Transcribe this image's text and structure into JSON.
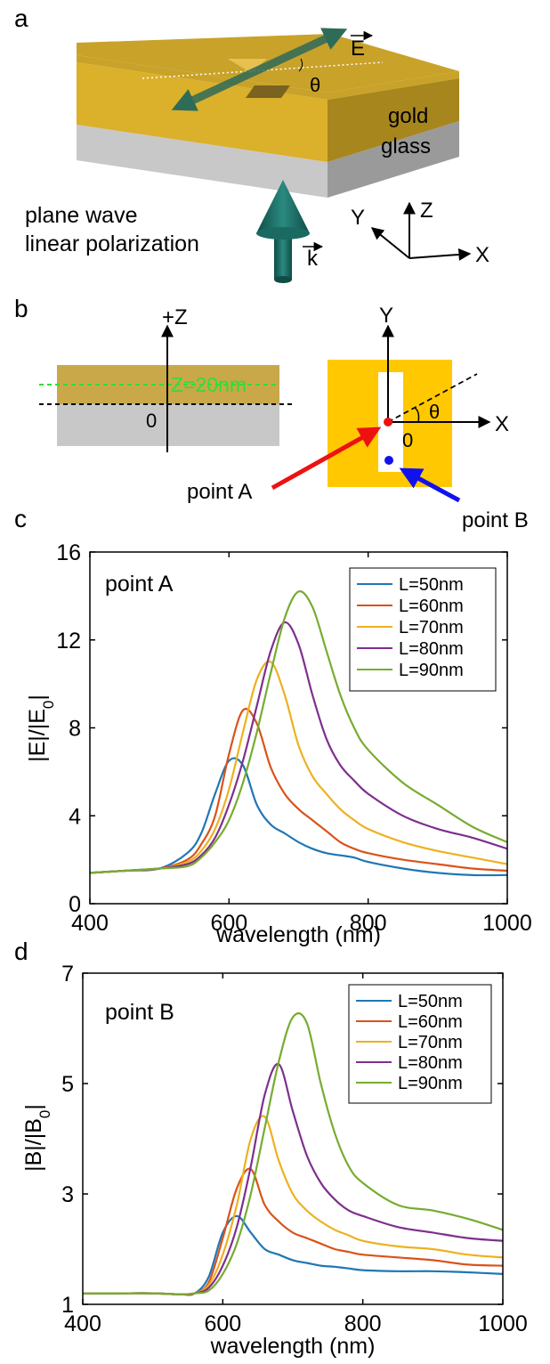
{
  "panels": {
    "a": {
      "letter": "a",
      "labels": {
        "gold": "gold",
        "glass": "glass",
        "source_line1": "plane wave",
        "source_line2": "linear polarization",
        "e_field": "E",
        "k_vector": "k",
        "theta": "θ",
        "axis_x": "X",
        "axis_y": "Y",
        "axis_z": "Z"
      },
      "colors": {
        "gold": "#d8ae26",
        "glass": "#c8c8c8",
        "arrow": "#2e6b58",
        "cone": "#1f6d66"
      }
    },
    "b": {
      "letter": "b",
      "labels": {
        "plus_z": "+Z",
        "z_plane": "Z=20nm",
        "origin_left": "0",
        "axis_y": "Y",
        "axis_x": "X",
        "theta": "θ",
        "origin_right": "0",
        "point_a": "point A",
        "point_b": "point B"
      },
      "colors": {
        "gold_side": "#c9a84a",
        "glass_side": "#c8c8c8",
        "gold_top": "#ffc800",
        "z_line": "#33dd33",
        "point_a": "#ee1111",
        "point_b": "#1111ee"
      }
    }
  },
  "chart_data": [
    {
      "panel": "c",
      "type": "line",
      "annotation": "point A",
      "xlabel": "wavelength (nm)",
      "ylabel": "|E|/|E0|",
      "xlim": [
        400,
        1000
      ],
      "ylim": [
        0,
        16
      ],
      "xticks": [
        400,
        600,
        800,
        1000
      ],
      "yticks": [
        0,
        4,
        8,
        12,
        16
      ],
      "legend_position": "top-right",
      "grid": false,
      "x": [
        400,
        450,
        500,
        540,
        560,
        580,
        600,
        620,
        640,
        660,
        680,
        700,
        720,
        740,
        760,
        780,
        800,
        850,
        900,
        950,
        1000
      ],
      "series": [
        {
          "name": "L=50nm",
          "color": "#1f77b4",
          "values": [
            1.4,
            1.5,
            1.6,
            2.3,
            3.2,
            5.0,
            6.5,
            6.3,
            4.5,
            3.6,
            3.2,
            2.8,
            2.5,
            2.3,
            2.2,
            2.1,
            1.9,
            1.6,
            1.4,
            1.3,
            1.3
          ]
        },
        {
          "name": "L=60nm",
          "color": "#d95319",
          "values": [
            1.4,
            1.5,
            1.6,
            2.0,
            2.7,
            4.0,
            6.8,
            8.8,
            8.2,
            6.2,
            5.0,
            4.3,
            3.8,
            3.3,
            2.8,
            2.5,
            2.3,
            2.0,
            1.8,
            1.6,
            1.5
          ]
        },
        {
          "name": "L=70nm",
          "color": "#edb120",
          "values": [
            1.4,
            1.5,
            1.6,
            1.9,
            2.4,
            3.4,
            5.2,
            7.8,
            10.2,
            11.0,
            9.5,
            7.2,
            5.8,
            5.0,
            4.3,
            3.8,
            3.4,
            2.8,
            2.4,
            2.1,
            1.8
          ]
        },
        {
          "name": "L=80nm",
          "color": "#7e2f8e",
          "values": [
            1.4,
            1.5,
            1.6,
            1.8,
            2.2,
            3.0,
            4.5,
            6.5,
            9.0,
            11.5,
            12.8,
            11.8,
            9.5,
            7.5,
            6.3,
            5.6,
            5.0,
            4.0,
            3.4,
            3.0,
            2.5
          ]
        },
        {
          "name": "L=90nm",
          "color": "#77ac30",
          "values": [
            1.4,
            1.5,
            1.6,
            1.7,
            2.1,
            2.8,
            3.8,
            5.5,
            7.8,
            10.5,
            13.0,
            14.2,
            13.5,
            11.5,
            9.5,
            8.0,
            7.0,
            5.5,
            4.5,
            3.5,
            2.8
          ]
        }
      ]
    },
    {
      "panel": "d",
      "type": "line",
      "annotation": "point B",
      "xlabel": "wavelength (nm)",
      "ylabel": "|B|/|B0|",
      "xlim": [
        400,
        1000
      ],
      "ylim": [
        1,
        7
      ],
      "xticks": [
        400,
        600,
        800,
        1000
      ],
      "yticks": [
        1,
        3,
        5,
        7
      ],
      "legend_position": "top-right",
      "grid": false,
      "x": [
        400,
        450,
        500,
        540,
        560,
        580,
        600,
        620,
        640,
        660,
        680,
        700,
        720,
        740,
        760,
        780,
        800,
        850,
        900,
        950,
        1000
      ],
      "series": [
        {
          "name": "L=50nm",
          "color": "#1f77b4",
          "values": [
            1.2,
            1.2,
            1.2,
            1.18,
            1.2,
            1.5,
            2.3,
            2.6,
            2.3,
            2.0,
            1.9,
            1.8,
            1.75,
            1.7,
            1.68,
            1.65,
            1.62,
            1.6,
            1.6,
            1.58,
            1.55
          ]
        },
        {
          "name": "L=60nm",
          "color": "#d95319",
          "values": [
            1.2,
            1.2,
            1.2,
            1.18,
            1.2,
            1.4,
            2.2,
            3.1,
            3.45,
            2.8,
            2.5,
            2.3,
            2.2,
            2.1,
            2.0,
            1.95,
            1.9,
            1.85,
            1.8,
            1.72,
            1.7
          ]
        },
        {
          "name": "L=70nm",
          "color": "#edb120",
          "values": [
            1.2,
            1.2,
            1.2,
            1.18,
            1.2,
            1.35,
            1.9,
            2.8,
            4.0,
            4.4,
            3.6,
            3.0,
            2.7,
            2.5,
            2.35,
            2.25,
            2.15,
            2.05,
            2.0,
            1.9,
            1.85
          ]
        },
        {
          "name": "L=80nm",
          "color": "#7e2f8e",
          "values": [
            1.2,
            1.2,
            1.2,
            1.18,
            1.2,
            1.3,
            1.7,
            2.4,
            3.5,
            4.8,
            5.35,
            4.5,
            3.7,
            3.2,
            2.9,
            2.7,
            2.6,
            2.4,
            2.3,
            2.2,
            2.15
          ]
        },
        {
          "name": "L=90nm",
          "color": "#77ac30",
          "values": [
            1.2,
            1.2,
            1.2,
            1.18,
            1.2,
            1.25,
            1.55,
            2.1,
            3.0,
            4.2,
            5.4,
            6.2,
            6.1,
            5.0,
            4.1,
            3.5,
            3.2,
            2.8,
            2.7,
            2.55,
            2.35
          ]
        }
      ]
    }
  ]
}
